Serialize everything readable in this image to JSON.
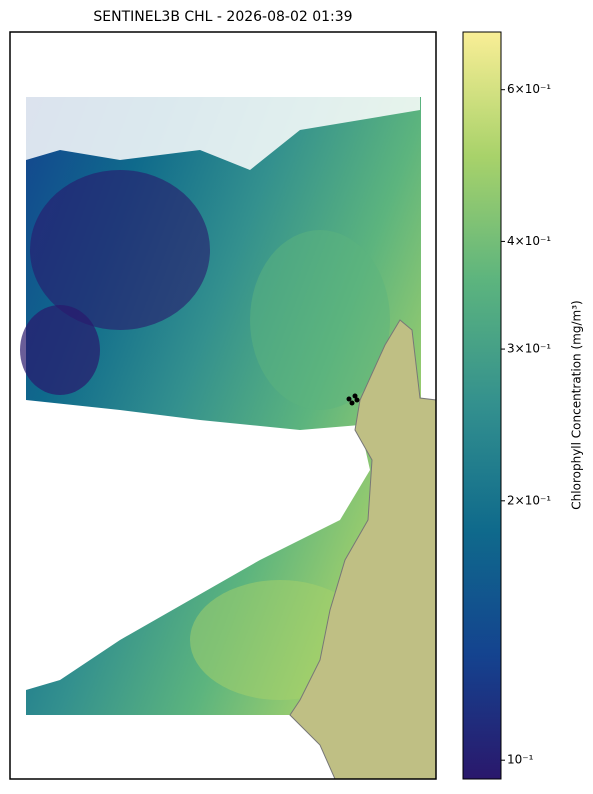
{
  "chart_data": {
    "type": "map",
    "title": "SENTINEL3B CHL - 2026-08-02 01:39",
    "colorbar": {
      "label": "Chlorophyll Concentration (mg/m³)",
      "log_scale": true,
      "lim": [
        0.0951,
        0.7
      ],
      "ticks": [
        {
          "value": 0.1,
          "label": "10⁻¹"
        },
        {
          "value": 0.2,
          "label": "2×10⁻¹"
        },
        {
          "value": 0.3,
          "label": "3×10⁻¹"
        },
        {
          "value": 0.4,
          "label": "4×10⁻¹"
        },
        {
          "value": 0.6,
          "label": "6×10⁻¹"
        }
      ],
      "colormap": [
        "#2a186c",
        "#14438f",
        "#0f6a8c",
        "#33908e",
        "#5cb47e",
        "#a8d26a",
        "#f9ee96"
      ]
    },
    "land_color": "#bfbf84"
  }
}
